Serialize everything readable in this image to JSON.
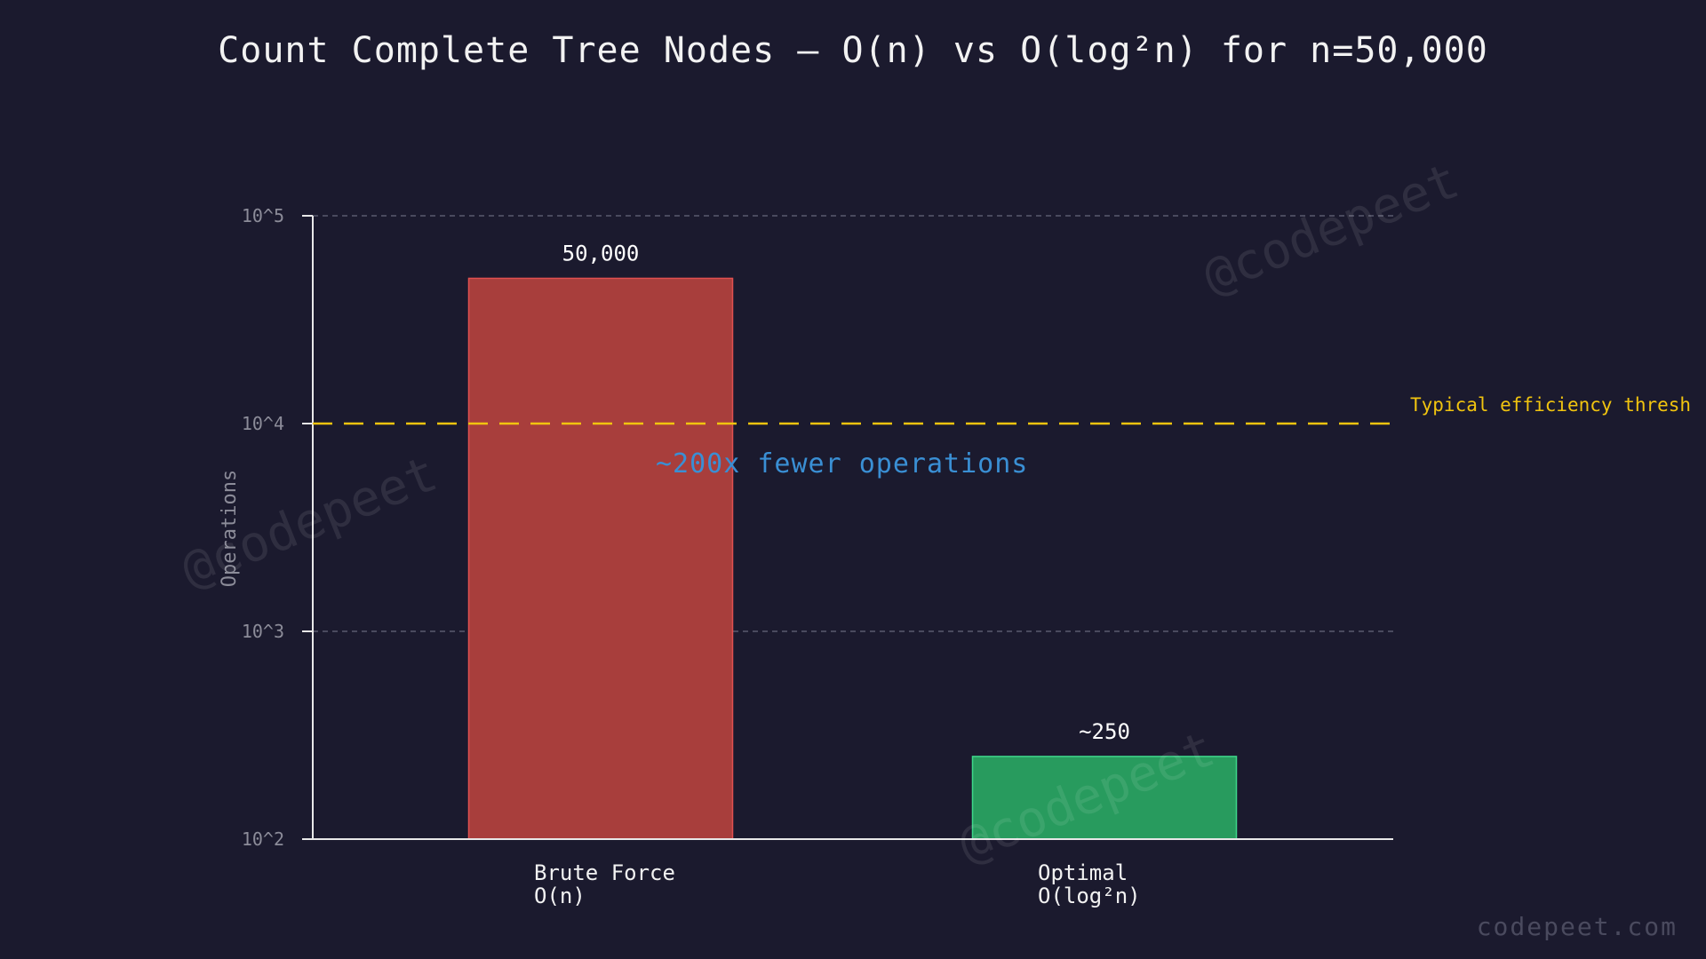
{
  "chart_data": {
    "type": "bar",
    "title": "Count Complete Tree Nodes — O(n) vs O(log²n) for n=50,000",
    "xlabel": "",
    "ylabel": "Operations",
    "yscale": "log",
    "ylim": [
      100,
      100000
    ],
    "yticks": [
      {
        "value": 100,
        "label": "10^2"
      },
      {
        "value": 1000,
        "label": "10^3"
      },
      {
        "value": 10000,
        "label": "10^4"
      },
      {
        "value": 100000,
        "label": "10^5"
      }
    ],
    "grid": true,
    "categories": [
      {
        "line1": "Brute Force",
        "line2": "O(n)"
      },
      {
        "line1": "Optimal",
        "line2": "O(log²n)"
      }
    ],
    "values": [
      50000,
      250
    ],
    "value_labels": [
      "50,000",
      "~250"
    ],
    "colors": {
      "bars": [
        "#a83e3c",
        "#289b5e"
      ],
      "bar_edges": [
        "#e05050",
        "#3ed68a"
      ],
      "threshold": "#f1c40f",
      "annotation": "#3a8fd4",
      "background": "#1b1a2e"
    },
    "threshold": {
      "value": 10000,
      "label": "Typical efficiency thresh"
    },
    "annotation": "~200x fewer operations"
  },
  "watermark": "@codepeet",
  "footer": "codepeet.com"
}
